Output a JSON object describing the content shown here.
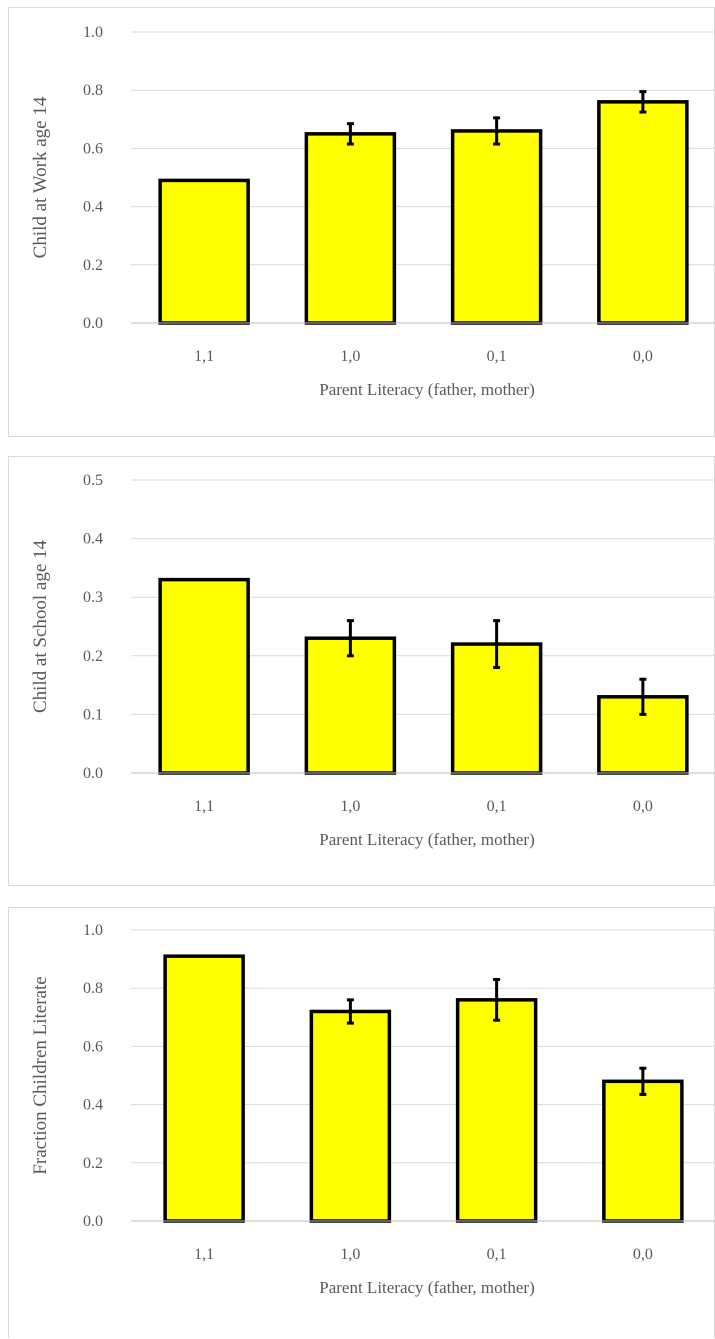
{
  "chart_data": [
    {
      "type": "bar",
      "categories": [
        "1,1",
        "1,0",
        "0,1",
        "0,0"
      ],
      "values": [
        0.49,
        0.65,
        0.66,
        0.76
      ],
      "error": [
        null,
        0.035,
        0.045,
        0.035
      ],
      "xlabel": "Parent Literacy (father, mother)",
      "ylabel": "Child at Work age 14",
      "ylim": [
        0,
        1.0
      ],
      "yticks": [
        "0.0",
        "0.2",
        "0.4",
        "0.6",
        "0.8",
        "1.0"
      ],
      "grid": true,
      "bar_color": "#ffff00",
      "bar_edge": "#000000"
    },
    {
      "type": "bar",
      "categories": [
        "1,1",
        "1,0",
        "0,1",
        "0,0"
      ],
      "values": [
        0.33,
        0.23,
        0.22,
        0.13
      ],
      "error": [
        null,
        0.03,
        0.04,
        0.03
      ],
      "xlabel": "Parent Literacy (father, mother)",
      "ylabel": "Child at School age 14",
      "ylim": [
        0,
        0.5
      ],
      "yticks": [
        "0.0",
        "0.1",
        "0.2",
        "0.3",
        "0.4",
        "0.5"
      ],
      "grid": true,
      "bar_color": "#ffff00",
      "bar_edge": "#000000"
    },
    {
      "type": "bar",
      "categories": [
        "1,1",
        "1,0",
        "0,1",
        "0,0"
      ],
      "values": [
        0.91,
        0.72,
        0.76,
        0.48
      ],
      "error": [
        null,
        0.04,
        0.07,
        0.045
      ],
      "xlabel": "Parent Literacy (father, mother)",
      "ylabel": "Fraction Children Literate",
      "ylim": [
        0,
        1.0
      ],
      "yticks": [
        "0.0",
        "0.2",
        "0.4",
        "0.6",
        "0.8",
        "1.0"
      ],
      "grid": true,
      "bar_color": "#ffff00",
      "bar_edge": "#000000"
    }
  ]
}
